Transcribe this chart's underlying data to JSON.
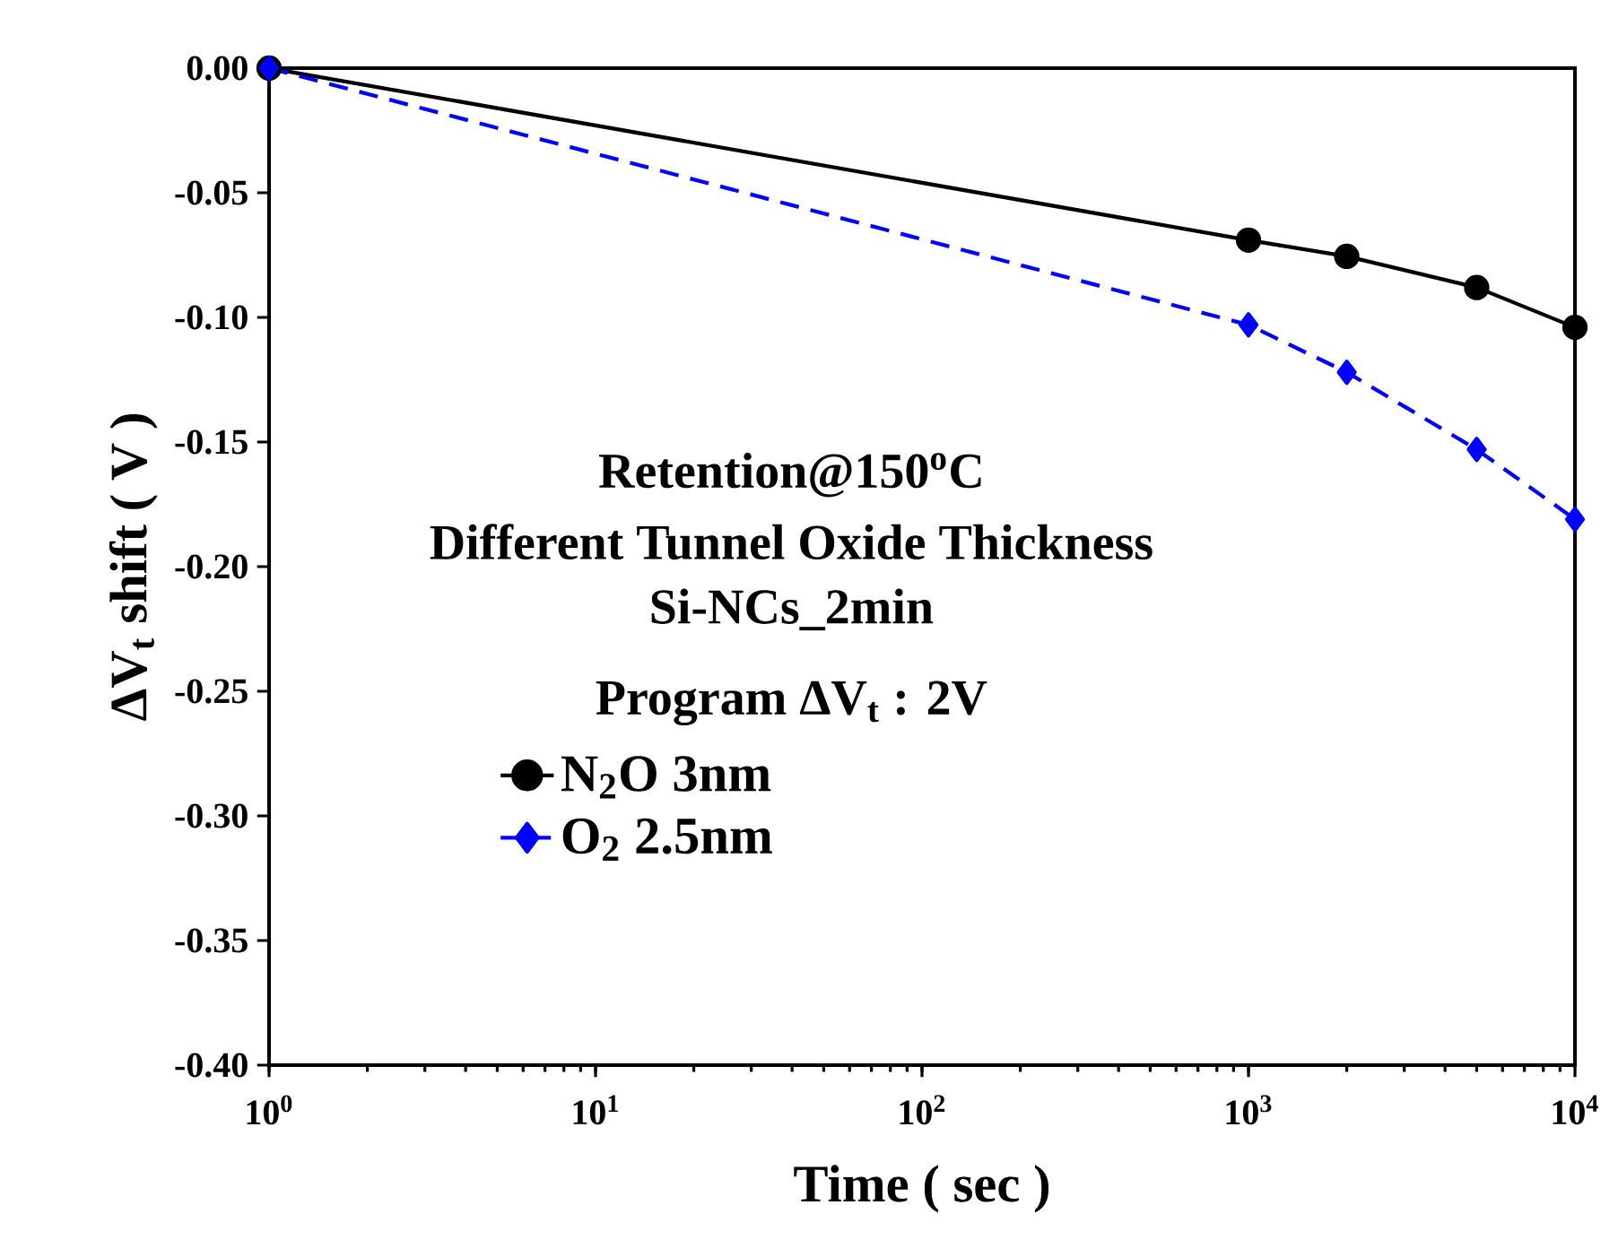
{
  "chart_data": {
    "type": "line",
    "xlabel": "Time ( sec )",
    "ylabel": "ΔV$_{t}$ shift ( V )",
    "annotations": [
      "Retention@150$^{o}$C",
      "Different Tunnel Oxide Thickness",
      "Si-NCs_2min",
      "Program ΔV$_{t}$ : 2V"
    ],
    "x": [
      1,
      1000,
      2000,
      5000,
      10000
    ],
    "series": [
      {
        "name": "N$_{2}$O 3nm",
        "color": "#000000",
        "marker": "circle",
        "line_style": "solid",
        "values": [
          0,
          -0.069,
          -0.0755,
          -0.088,
          -0.104
        ]
      },
      {
        "name": "O$_{2}$   2.5nm",
        "color": "#0000ff",
        "marker": "diamond",
        "line_style": "dashed",
        "values": [
          0,
          -0.103,
          -0.122,
          -0.153,
          -0.181
        ]
      }
    ],
    "log": "x",
    "xlim": [
      1,
      10000
    ],
    "xticks": [
      {
        "value": 1,
        "label": "10$^{0}$"
      },
      {
        "value": 10,
        "label": "10$^{1}$"
      },
      {
        "value": 100,
        "label": "10$^{2}$"
      },
      {
        "value": 1000,
        "label": "10$^{3}$"
      },
      {
        "value": 10000,
        "label": "10$^{4}$"
      }
    ],
    "ylim": [
      -0.4,
      0
    ],
    "yticks": [
      {
        "value": 0,
        "label": "0.00"
      },
      {
        "value": -0.05,
        "label": "-0.05"
      },
      {
        "value": -0.1,
        "label": "-0.10"
      },
      {
        "value": -0.15,
        "label": "-0.15"
      },
      {
        "value": -0.2,
        "label": "-0.20"
      },
      {
        "value": -0.25,
        "label": "-0.25"
      },
      {
        "value": -0.3,
        "label": "-0.30"
      },
      {
        "value": -0.35,
        "label": "-0.35"
      },
      {
        "value": -0.4,
        "label": "-0.40"
      }
    ],
    "grid": false,
    "legend": "bottom left"
  }
}
